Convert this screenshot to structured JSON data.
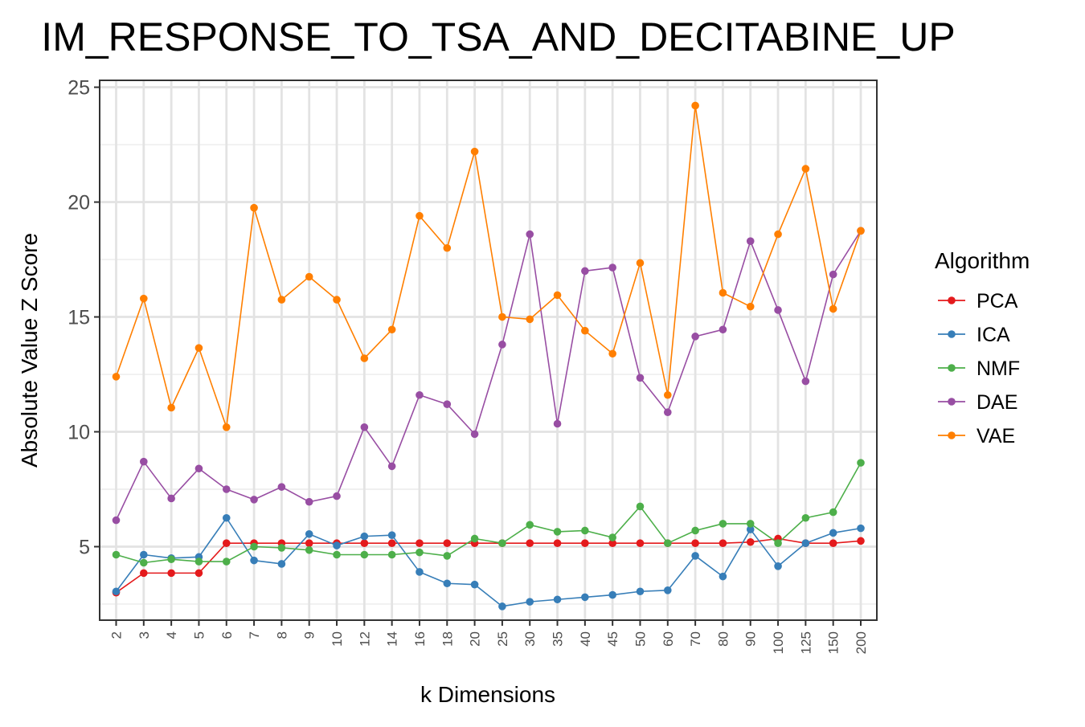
{
  "chart_data": {
    "type": "line",
    "title": "IM_RESPONSE_TO_TSA_AND_DECITABINE_UP",
    "xlabel": "k Dimensions",
    "ylabel": "Absolute Value Z Score",
    "categories": [
      "2",
      "3",
      "4",
      "5",
      "6",
      "7",
      "8",
      "9",
      "10",
      "12",
      "14",
      "16",
      "18",
      "20",
      "25",
      "30",
      "35",
      "40",
      "45",
      "50",
      "60",
      "70",
      "80",
      "90",
      "100",
      "125",
      "150",
      "200"
    ],
    "ylim": [
      1.8,
      25.3
    ],
    "yticks": [
      5,
      10,
      15,
      20,
      25
    ],
    "grid": true,
    "legend": {
      "title": "Algorithm",
      "position": "right"
    },
    "series": [
      {
        "name": "PCA",
        "color": "#e41a1c",
        "values": [
          3.0,
          3.85,
          3.85,
          3.85,
          5.15,
          5.15,
          5.15,
          5.15,
          5.15,
          5.15,
          5.15,
          5.15,
          5.15,
          5.15,
          5.15,
          5.15,
          5.15,
          5.15,
          5.15,
          5.15,
          5.15,
          5.15,
          5.15,
          5.2,
          5.35,
          5.15,
          5.15,
          5.25
        ]
      },
      {
        "name": "ICA",
        "color": "#377eb8",
        "values": [
          3.05,
          4.65,
          4.5,
          4.55,
          6.25,
          4.4,
          4.25,
          5.55,
          5.05,
          5.45,
          5.5,
          3.9,
          3.4,
          3.35,
          2.4,
          2.6,
          2.7,
          2.8,
          2.9,
          3.05,
          3.1,
          4.6,
          3.7,
          5.75,
          4.15,
          5.15,
          5.6,
          5.8
        ]
      },
      {
        "name": "NMF",
        "color": "#4daf4a",
        "values": [
          4.65,
          4.3,
          4.45,
          4.35,
          4.35,
          5.0,
          4.95,
          4.85,
          4.65,
          4.65,
          4.65,
          4.75,
          4.6,
          5.35,
          5.15,
          5.95,
          5.65,
          5.7,
          5.4,
          6.75,
          5.15,
          5.7,
          6.0,
          6.0,
          5.15,
          6.25,
          6.5,
          8.65
        ]
      },
      {
        "name": "DAE",
        "color": "#984ea3",
        "values": [
          6.15,
          8.7,
          7.1,
          8.4,
          7.5,
          7.05,
          7.6,
          6.95,
          7.2,
          10.2,
          8.5,
          11.6,
          11.2,
          9.9,
          13.8,
          18.6,
          10.35,
          17.0,
          17.15,
          12.35,
          10.85,
          14.15,
          14.45,
          18.3,
          15.3,
          12.2,
          16.85,
          18.75
        ]
      },
      {
        "name": "VAE",
        "color": "#ff7f00",
        "values": [
          12.4,
          15.8,
          11.05,
          13.65,
          10.2,
          19.75,
          15.75,
          16.75,
          15.75,
          13.2,
          14.45,
          19.4,
          18.0,
          22.2,
          15.0,
          14.9,
          15.95,
          14.4,
          13.4,
          17.35,
          11.6,
          24.2,
          16.05,
          15.45,
          18.6,
          21.45,
          15.35,
          18.75
        ]
      }
    ]
  }
}
